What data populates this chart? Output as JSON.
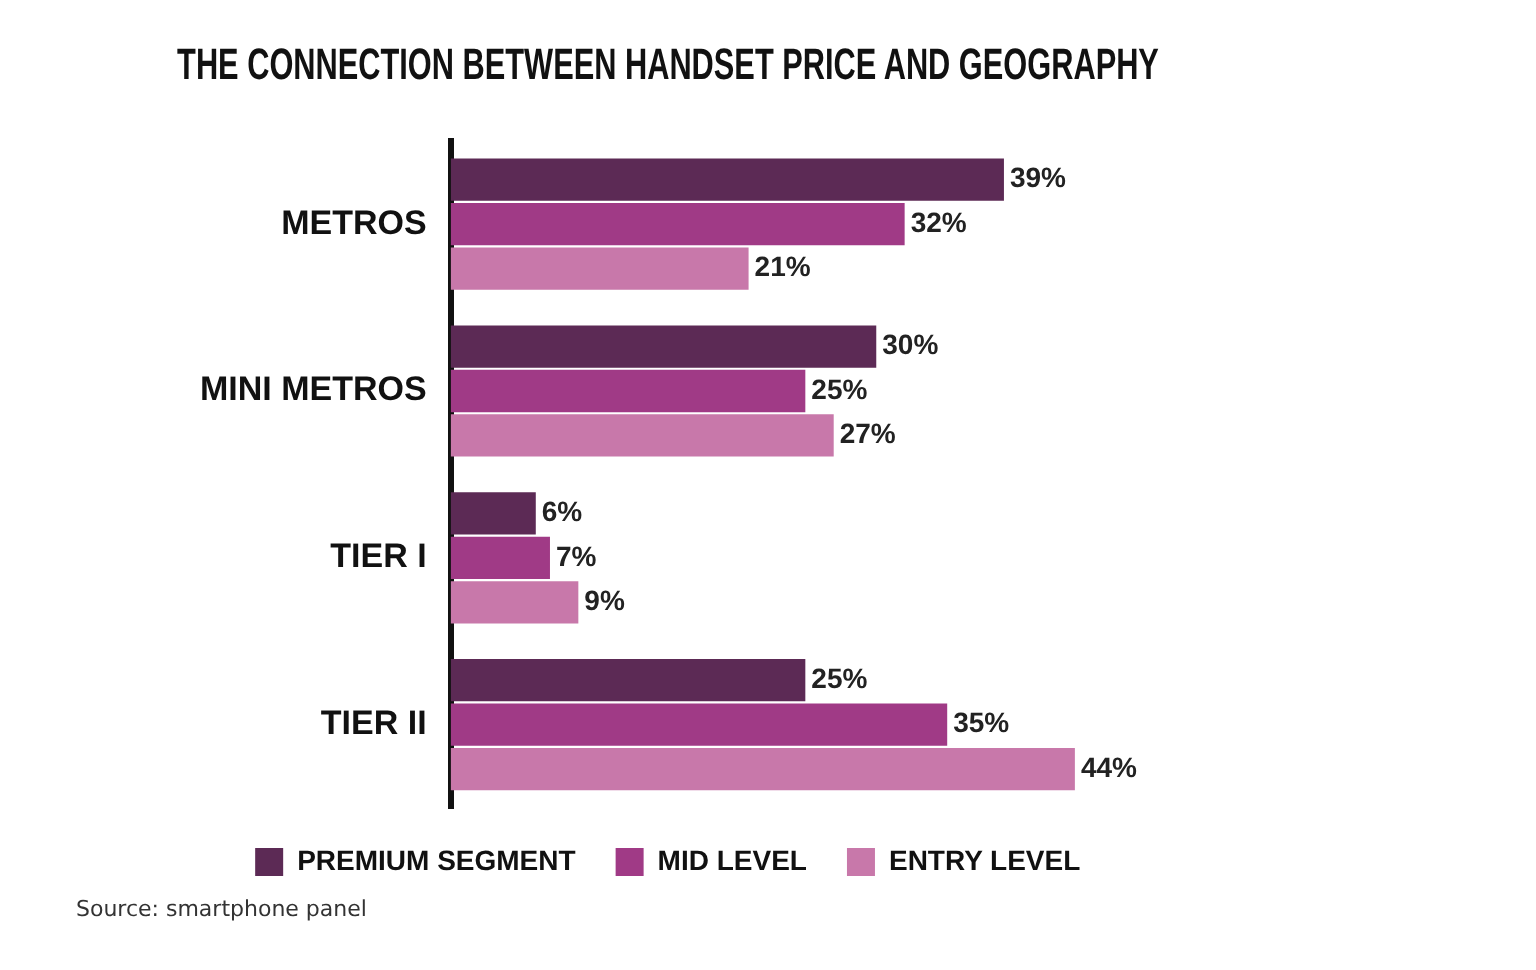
{
  "chart_data": {
    "type": "bar",
    "orientation": "horizontal",
    "title": "THE CONNECTION BETWEEN HANDSET PRICE AND GEOGRAPHY",
    "categories": [
      "METROS",
      "MINI METROS",
      "TIER I",
      "TIER II"
    ],
    "series": [
      {
        "name": "PREMIUM SEGMENT",
        "color": "#5c2a55",
        "values": [
          39,
          30,
          6,
          25
        ],
        "value_labels": [
          "39%",
          "30%",
          "6%",
          "25%"
        ]
      },
      {
        "name": "MID LEVEL",
        "color": "#a03a86",
        "values": [
          32,
          25,
          7,
          35
        ],
        "value_labels": [
          "32%",
          "25%",
          "7%",
          "35%"
        ]
      },
      {
        "name": "ENTRY LEVEL",
        "color": "#c878aa",
        "values": [
          21,
          27,
          9,
          44
        ],
        "value_labels": [
          "21%",
          "27%",
          "9%",
          "44%"
        ]
      }
    ],
    "legend": "bottom",
    "annotations": [
      "Source: smartphone panel"
    ]
  }
}
